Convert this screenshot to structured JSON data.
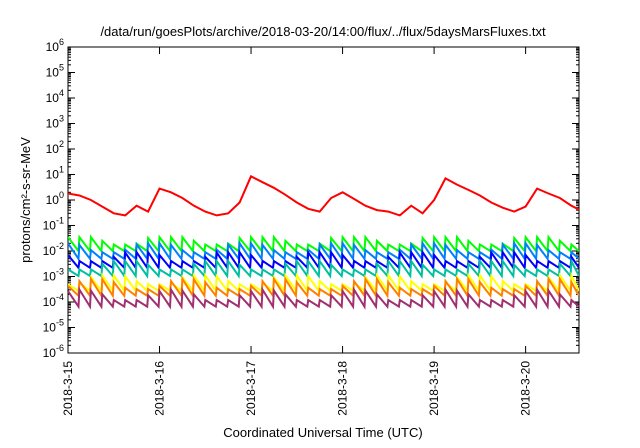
{
  "chart_data": {
    "type": "line",
    "title": "/data/run/goesPlots/archive/2018-03-20/14:00/flux/../flux/5daysMarsFluxes.txt",
    "xlabel": "Coordinated Universal Time (UTC)",
    "ylabel": "protons/cm²-s-sr-MeV",
    "yscale": "log",
    "ylim": [
      1e-06,
      1000000.0
    ],
    "xlim": [
      "2018-03-15 00:00",
      "2018-03-20 14:00"
    ],
    "grid": false,
    "legend": "none",
    "x_tick_labels": [
      "2018-3-15",
      "2018-3-16",
      "2018-3-17",
      "2018-3-18",
      "2018-3-19",
      "2018-3-20"
    ],
    "y_tick_exponents": [
      -6,
      -5,
      -4,
      -3,
      -2,
      -1,
      0,
      1,
      2,
      3,
      4,
      5,
      6
    ],
    "series": [
      {
        "color": "#ff0000",
        "x": [
          "2018-03-15 00:00",
          "2018-03-15 03:00",
          "2018-03-15 06:00",
          "2018-03-15 09:00",
          "2018-03-15 12:00",
          "2018-03-15 15:00",
          "2018-03-15 18:00",
          "2018-03-15 21:00",
          "2018-03-16 00:00",
          "2018-03-16 03:00",
          "2018-03-16 06:00",
          "2018-03-16 09:00",
          "2018-03-16 12:00",
          "2018-03-16 15:00",
          "2018-03-16 18:00",
          "2018-03-16 21:00",
          "2018-03-17 00:00",
          "2018-03-17 03:00",
          "2018-03-17 06:00",
          "2018-03-17 09:00",
          "2018-03-17 12:00",
          "2018-03-17 15:00",
          "2018-03-17 18:00",
          "2018-03-17 21:00",
          "2018-03-18 00:00",
          "2018-03-18 03:00",
          "2018-03-18 06:00",
          "2018-03-18 09:00",
          "2018-03-18 12:00",
          "2018-03-18 15:00",
          "2018-03-18 18:00",
          "2018-03-18 21:00",
          "2018-03-19 00:00",
          "2018-03-19 03:00",
          "2018-03-19 06:00",
          "2018-03-19 09:00",
          "2018-03-19 12:00",
          "2018-03-19 15:00",
          "2018-03-19 18:00",
          "2018-03-19 21:00",
          "2018-03-20 00:00",
          "2018-03-20 03:00",
          "2018-03-20 06:00",
          "2018-03-20 09:00",
          "2018-03-20 12:00",
          "2018-03-20 14:00"
        ],
        "values": [
          1.8,
          1.5,
          1.0,
          0.55,
          0.3,
          0.25,
          0.6,
          0.35,
          2.8,
          2.0,
          1.2,
          0.6,
          0.35,
          0.25,
          0.3,
          0.8,
          8.5,
          5.0,
          3.0,
          1.6,
          0.8,
          0.45,
          0.35,
          1.2,
          2.0,
          1.1,
          0.6,
          0.4,
          0.35,
          0.25,
          0.6,
          0.3,
          1.0,
          7.0,
          4.0,
          2.5,
          1.5,
          0.8,
          0.5,
          0.35,
          0.55,
          2.8,
          1.8,
          1.2,
          0.6,
          0.42
        ]
      },
      {
        "color": "#00ff00",
        "periodic": true,
        "cycle_hours": 3,
        "base": 0.018,
        "min": 0.009,
        "max": 0.035
      },
      {
        "color": "#0080ff",
        "periodic": true,
        "cycle_hours": 3,
        "base": 0.009,
        "min": 0.004,
        "max": 0.02
      },
      {
        "color": "#0000ff",
        "periodic": true,
        "cycle_hours": 3,
        "base": 0.004,
        "min": 0.0018,
        "max": 0.009
      },
      {
        "color": "#00c0a0",
        "periodic": true,
        "cycle_hours": 3,
        "base": 0.0019,
        "min": 0.0008,
        "max": 0.004
      },
      {
        "color": "#ffff00",
        "periodic": true,
        "cycle_hours": 3,
        "base": 0.0005,
        "min": 0.00018,
        "max": 0.0011
      },
      {
        "color": "#ff8000",
        "periodic": true,
        "cycle_hours": 3,
        "base": 0.00032,
        "min": 0.00012,
        "max": 0.0008
      },
      {
        "color": "#a0306f",
        "periodic": true,
        "cycle_hours": 3,
        "base": 0.00012,
        "min": 4e-05,
        "max": 0.0004
      }
    ]
  }
}
